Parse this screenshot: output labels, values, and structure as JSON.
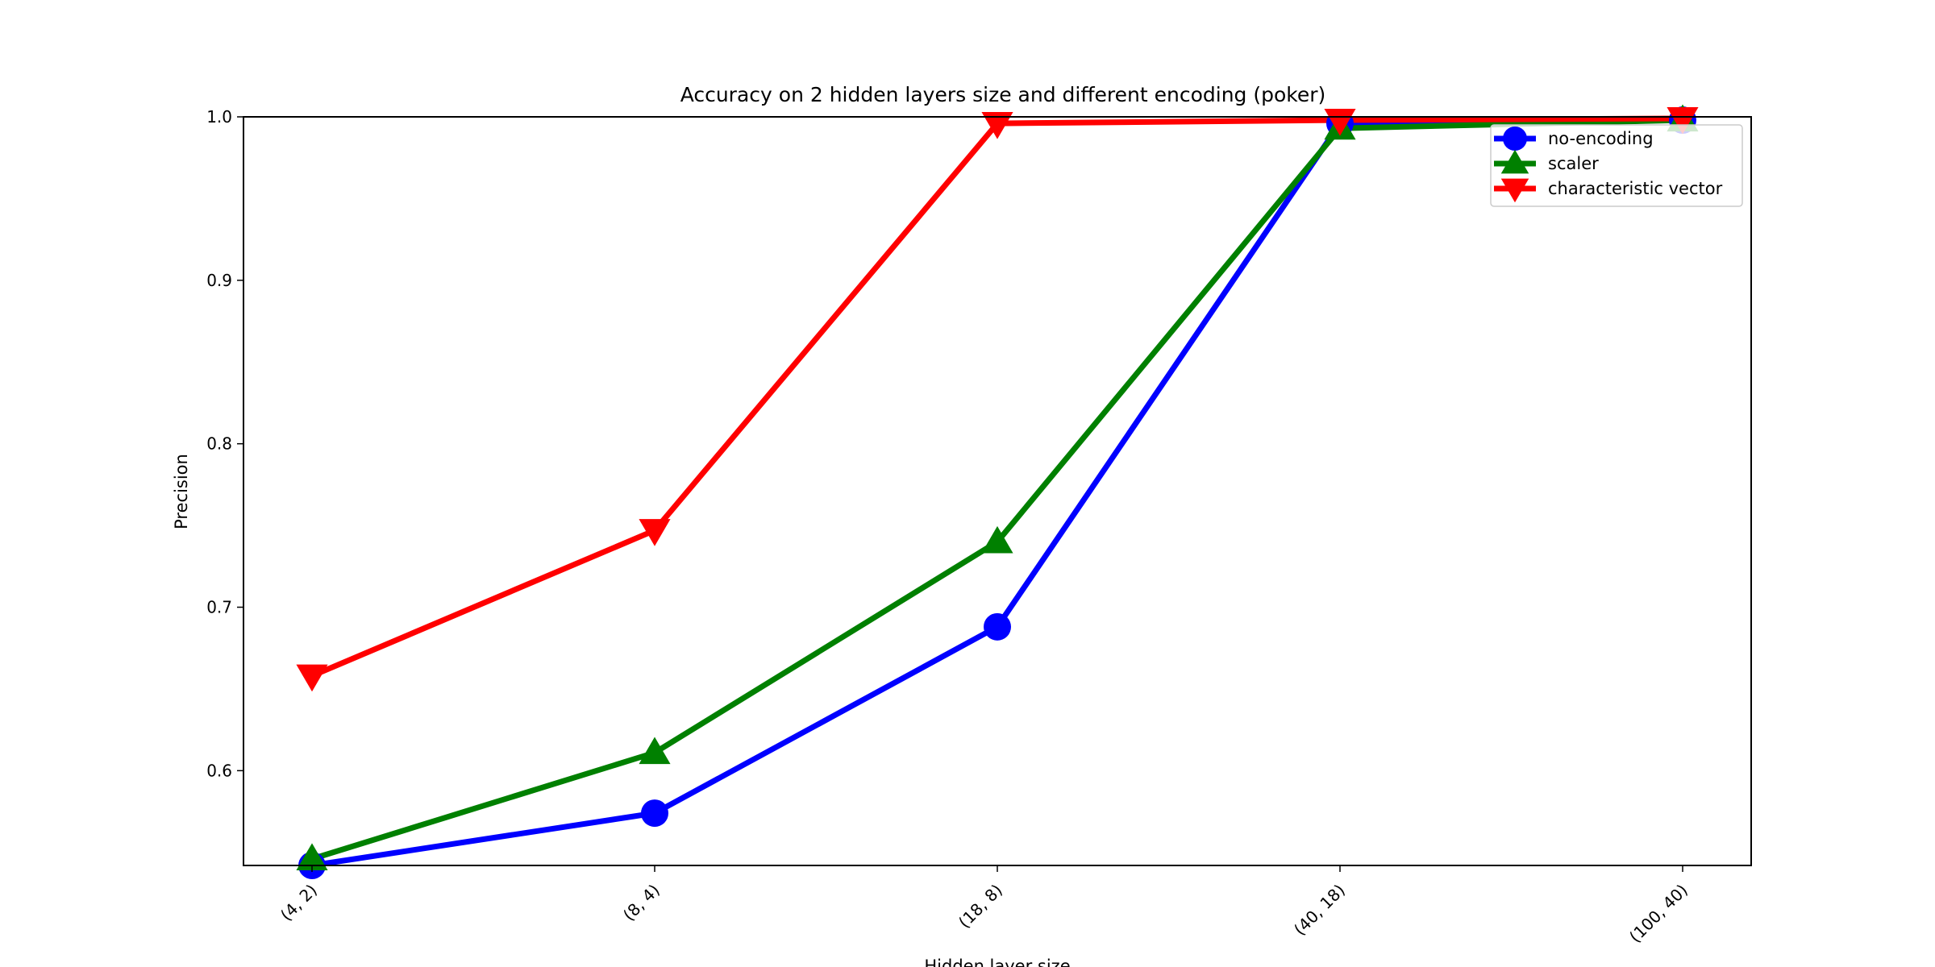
{
  "chart_data": {
    "type": "line",
    "title": "Accuracy on 2 hidden layers size and different encoding (poker)",
    "xlabel": "Hidden layer size",
    "ylabel": "Precision",
    "categories": [
      "(4, 2)",
      "(8, 4)",
      "(18, 8)",
      "(40, 18)",
      "(100, 40)"
    ],
    "ylim": [
      0.542,
      1.0
    ],
    "yticks": [
      "0.6",
      "0.7",
      "0.8",
      "0.9",
      "1.0"
    ],
    "grid": false,
    "legend_position": "top-right",
    "series": [
      {
        "name": "no-encoding",
        "values": [
          0.542,
          0.574,
          0.688,
          0.996,
          0.998
        ],
        "color": "#0000ff",
        "marker": "circle"
      },
      {
        "name": "scaler",
        "values": [
          0.546,
          0.611,
          0.74,
          0.993,
          0.998
        ],
        "color": "#008000",
        "marker": "triangle-up"
      },
      {
        "name": "characteristic vector",
        "values": [
          0.658,
          0.747,
          0.996,
          0.998,
          0.999
        ],
        "color": "#ff0000",
        "marker": "triangle-down"
      }
    ]
  }
}
